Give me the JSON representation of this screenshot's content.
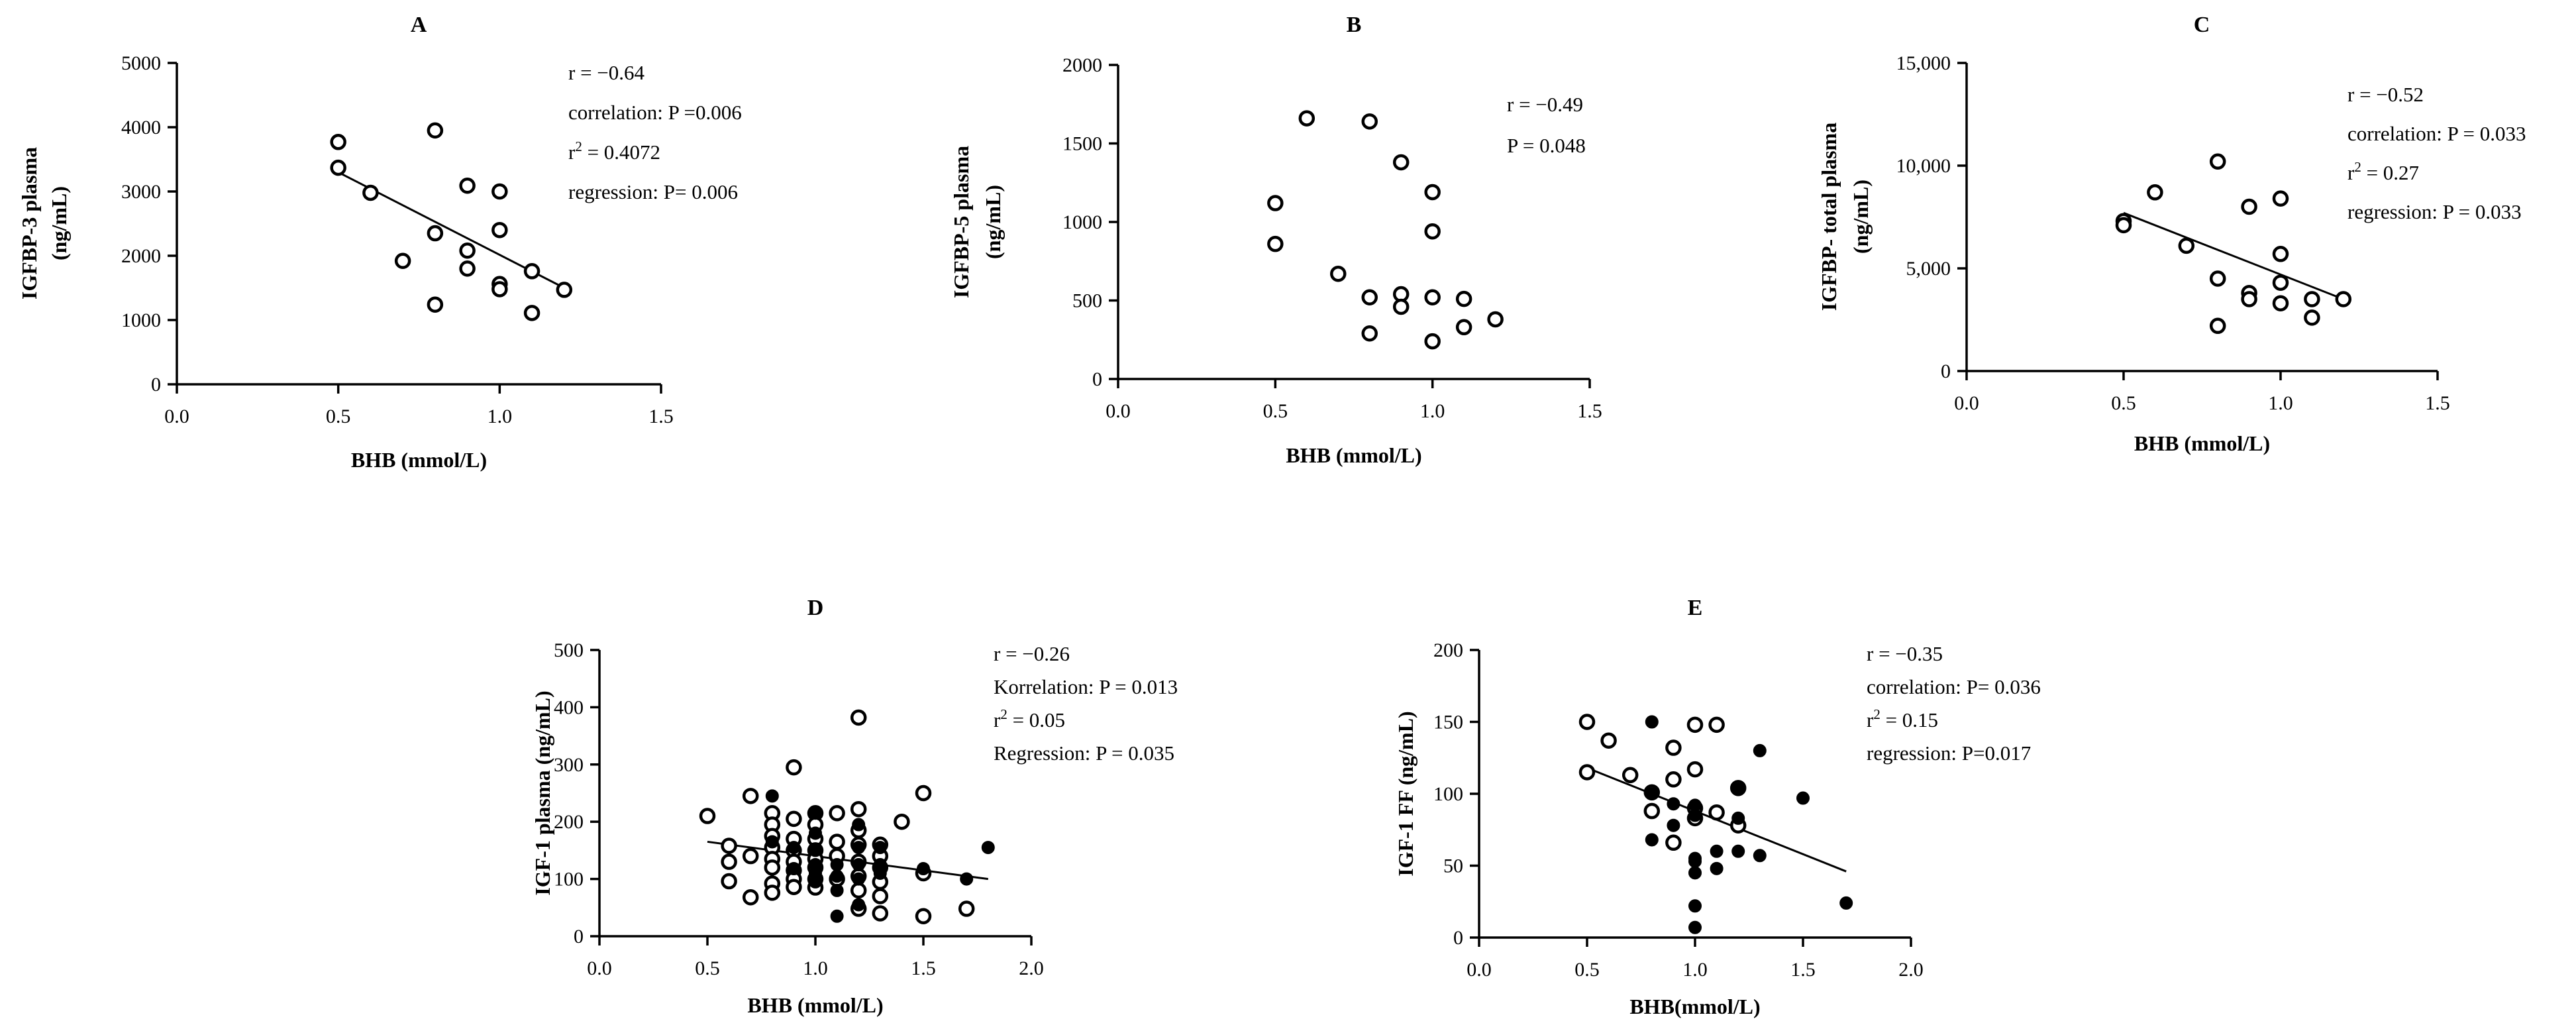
{
  "chart_data": [
    {
      "type": "scatter",
      "panel": "A",
      "title": "A",
      "xlabel": "BHB (mmol/L)",
      "ylabel": [
        "IGFBP-3 plasma",
        "(ng/mL)"
      ],
      "xlim": [
        0,
        1.5
      ],
      "ylim": [
        0,
        5000
      ],
      "xticks": [
        "0.0",
        "0.5",
        "1.0",
        "1.5"
      ],
      "yticks": [
        "0",
        "1000",
        "2000",
        "3000",
        "4000",
        "5000"
      ],
      "annotations": [
        {
          "pre": "r = −0.64",
          "sup": "",
          "post": ""
        },
        {
          "pre": "correlation: P =0.006",
          "sup": "",
          "post": ""
        },
        {
          "pre": "r",
          "sup": "2",
          "post": " = 0.4072"
        },
        {
          "pre": "regression: P= 0.006",
          "sup": "",
          "post": ""
        }
      ],
      "regression": {
        "x": [
          0.5,
          1.2
        ],
        "y": [
          3300,
          1500
        ]
      },
      "series": [
        {
          "marker": "open",
          "x": [
            0.5,
            0.5,
            0.6,
            0.7,
            0.8,
            0.8,
            0.8,
            0.9,
            0.9,
            0.9,
            1.0,
            1.0,
            1.0,
            1.0,
            1.1,
            1.1,
            1.2
          ],
          "y": [
            3770,
            3370,
            2980,
            1920,
            3950,
            2350,
            1240,
            3090,
            2080,
            1800,
            3000,
            2400,
            1560,
            1480,
            1760,
            1110,
            1470
          ]
        }
      ]
    },
    {
      "type": "scatter",
      "panel": "B",
      "title": "B",
      "xlabel": "BHB (mmol/L)",
      "ylabel": [
        "IGFBP-5 plasma",
        "(ng/mL)"
      ],
      "xlim": [
        0,
        1.5
      ],
      "ylim": [
        0,
        2000
      ],
      "xticks": [
        "0.0",
        "0.5",
        "1.0",
        "1.5"
      ],
      "yticks": [
        "0",
        "500",
        "1000",
        "1500",
        "2000"
      ],
      "annotations": [
        {
          "pre": "r = −0.49",
          "sup": "",
          "post": ""
        },
        {
          "pre": "P = 0.048",
          "sup": "",
          "post": ""
        }
      ],
      "series": [
        {
          "marker": "open",
          "x": [
            0.5,
            0.5,
            0.6,
            0.7,
            0.8,
            0.8,
            0.8,
            0.9,
            0.9,
            0.9,
            1.0,
            1.0,
            1.0,
            1.0,
            1.1,
            1.1,
            1.2
          ],
          "y": [
            1120,
            860,
            1660,
            670,
            1640,
            520,
            290,
            1380,
            540,
            460,
            1190,
            940,
            520,
            240,
            510,
            330,
            380
          ]
        }
      ]
    },
    {
      "type": "scatter",
      "panel": "C",
      "title": "C",
      "xlabel": "BHB (mmol/L)",
      "ylabel": [
        "IGFBP- total plasma",
        "(ng/mL)"
      ],
      "xlim": [
        0,
        1.5
      ],
      "ylim": [
        0,
        15000
      ],
      "xticks": [
        "0.0",
        "0.5",
        "1.0",
        "1.5"
      ],
      "yticks": [
        "0",
        "5,000",
        "10,000",
        "15,000"
      ],
      "annotations": [
        {
          "pre": "r = −0.52",
          "sup": "",
          "post": ""
        },
        {
          "pre": "correlation: P = 0.033",
          "sup": "",
          "post": ""
        },
        {
          "pre": "r",
          "sup": "2",
          "post": " = 0.27"
        },
        {
          "pre": "regression: P = 0.033",
          "sup": "",
          "post": ""
        }
      ],
      "regression": {
        "x": [
          0.5,
          1.2
        ],
        "y": [
          7700,
          3500
        ]
      },
      "series": [
        {
          "marker": "open",
          "x": [
            0.5,
            0.5,
            0.6,
            0.7,
            0.8,
            0.8,
            0.8,
            0.9,
            0.9,
            0.9,
            1.0,
            1.0,
            1.0,
            1.0,
            1.1,
            1.1,
            1.2
          ],
          "y": [
            7300,
            7100,
            8700,
            6100,
            10200,
            4500,
            2200,
            8000,
            3800,
            3500,
            8400,
            5700,
            4300,
            3300,
            3500,
            2600,
            3500
          ]
        }
      ]
    },
    {
      "type": "scatter",
      "panel": "D",
      "title": "D",
      "xlabel": "BHB (mmol/L)",
      "ylabel": [
        "IGF-1 plasma (ng/mL)"
      ],
      "xlim": [
        0,
        2.0
      ],
      "ylim": [
        0,
        500
      ],
      "xticks": [
        "0.0",
        "0.5",
        "1.0",
        "1.5",
        "2.0"
      ],
      "yticks": [
        "0",
        "100",
        "200",
        "300",
        "400",
        "500"
      ],
      "annotations": [
        {
          "pre": "r = −0.26",
          "sup": "",
          "post": ""
        },
        {
          "pre": "Korrelation: P = 0.013",
          "sup": "",
          "post": ""
        },
        {
          "pre": "r",
          "sup": "2",
          "post": " = 0.05"
        },
        {
          "pre": "Regression: P = 0.035",
          "sup": "",
          "post": ""
        }
      ],
      "regression": {
        "x": [
          0.5,
          1.8
        ],
        "y": [
          165,
          100
        ]
      },
      "series": [
        {
          "marker": "open",
          "x": [
            0.5,
            0.6,
            0.6,
            0.6,
            0.7,
            0.7,
            0.7,
            0.8,
            0.8,
            0.8,
            0.8,
            0.8,
            0.8,
            0.8,
            0.8,
            0.9,
            0.9,
            0.9,
            0.9,
            0.9,
            0.9,
            0.9,
            0.9,
            1.0,
            1.0,
            1.0,
            1.0,
            1.0,
            1.0,
            1.0,
            1.0,
            1.1,
            1.1,
            1.1,
            1.1,
            1.2,
            1.2,
            1.2,
            1.2,
            1.2,
            1.2,
            1.2,
            1.2,
            1.3,
            1.3,
            1.3,
            1.3,
            1.3,
            1.3,
            1.4,
            1.5,
            1.5,
            1.5,
            1.7
          ],
          "y": [
            210,
            158,
            130,
            96,
            245,
            140,
            68,
            215,
            195,
            175,
            155,
            135,
            120,
            92,
            76,
            295,
            205,
            170,
            150,
            130,
            115,
            100,
            86,
            215,
            195,
            170,
            150,
            135,
            120,
            100,
            85,
            215,
            165,
            140,
            100,
            382,
            222,
            185,
            160,
            130,
            105,
            80,
            48,
            160,
            140,
            120,
            95,
            70,
            40,
            200,
            250,
            110,
            35,
            48
          ]
        },
        {
          "marker": "filled",
          "x": [
            0.8,
            0.8,
            0.9,
            0.9,
            1.0,
            1.0,
            1.0,
            1.0,
            1.0,
            1.0,
            1.1,
            1.1,
            1.1,
            1.1,
            1.2,
            1.2,
            1.2,
            1.2,
            1.2,
            1.3,
            1.3,
            1.3,
            1.5,
            1.7,
            1.8
          ],
          "y": [
            245,
            165,
            155,
            118,
            215,
            180,
            150,
            125,
            110,
            95,
            125,
            105,
            80,
            35,
            195,
            155,
            125,
            100,
            55,
            155,
            125,
            110,
            118,
            100,
            155
          ]
        }
      ]
    },
    {
      "type": "scatter",
      "panel": "E",
      "title": "E",
      "xlabel": "BHB(mmol/L)",
      "ylabel": [
        "IGF-1 FF (ng/mL)"
      ],
      "xlim": [
        0,
        2.0
      ],
      "ylim": [
        0,
        200
      ],
      "xticks": [
        "0.0",
        "0.5",
        "1.0",
        "1.5",
        "2.0"
      ],
      "yticks": [
        "0",
        "50",
        "100",
        "150",
        "200"
      ],
      "annotations": [
        {
          "pre": "r = −0.35",
          "sup": "",
          "post": ""
        },
        {
          "pre": "correlation: P= 0.036",
          "sup": "",
          "post": ""
        },
        {
          "pre": "r",
          "sup": "2",
          "post": " = 0.15"
        },
        {
          "pre": "regression: P=0.017",
          "sup": "",
          "post": ""
        }
      ],
      "regression": {
        "x": [
          0.5,
          1.7
        ],
        "y": [
          118,
          46
        ]
      },
      "series": [
        {
          "marker": "open",
          "x": [
            0.5,
            0.5,
            0.6,
            0.7,
            0.8,
            0.8,
            0.9,
            0.9,
            0.9,
            1.0,
            1.0,
            1.0,
            1.0,
            1.1,
            1.1,
            1.2,
            1.2
          ],
          "y": [
            150,
            115,
            137,
            113,
            101,
            88,
            132,
            110,
            66,
            148,
            117,
            90,
            83,
            148,
            87,
            104,
            78
          ]
        },
        {
          "marker": "filled",
          "x": [
            0.8,
            0.8,
            0.8,
            0.9,
            0.9,
            1.0,
            1.0,
            1.0,
            1.0,
            1.0,
            1.0,
            1.0,
            1.1,
            1.1,
            1.2,
            1.2,
            1.2,
            1.3,
            1.3,
            1.5,
            1.7
          ],
          "y": [
            150,
            100,
            68,
            93,
            78,
            92,
            85,
            55,
            53,
            45,
            22,
            7,
            60,
            48,
            103,
            83,
            60,
            130,
            57,
            97,
            24
          ]
        }
      ]
    }
  ]
}
